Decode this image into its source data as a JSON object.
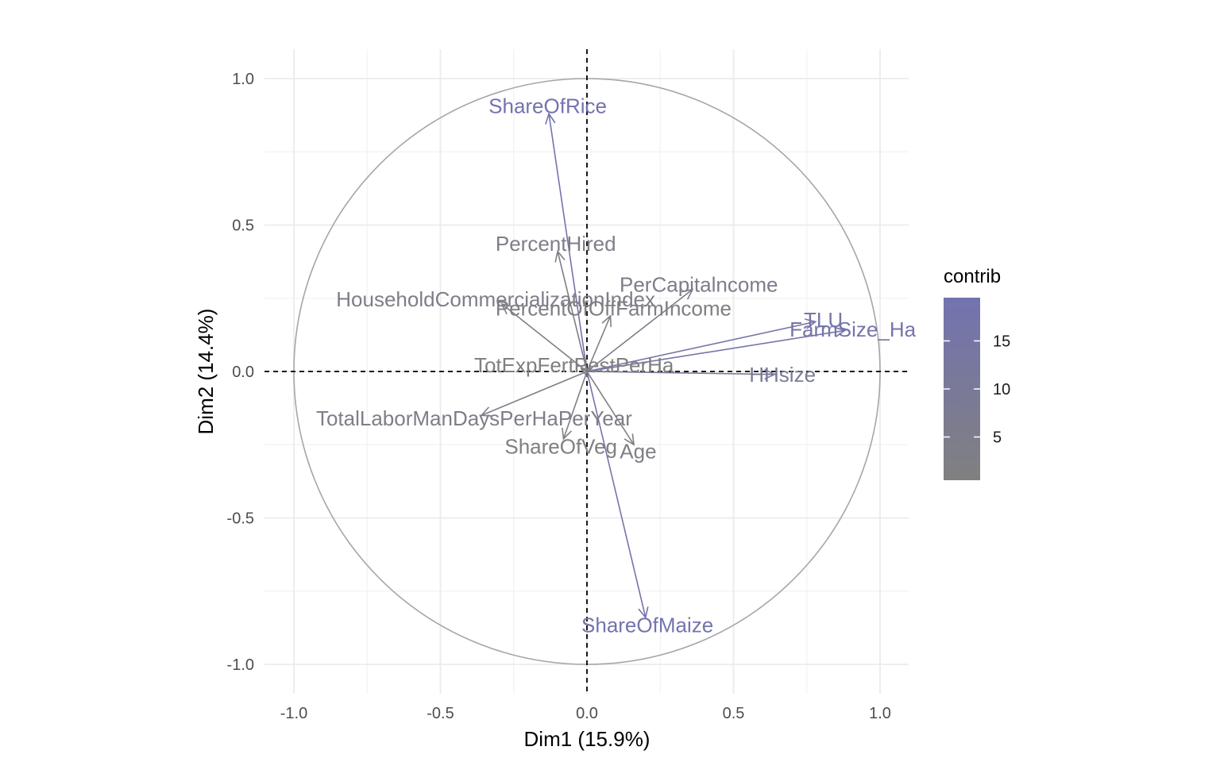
{
  "chart_data": {
    "type": "pca-variables",
    "xlabel": "Dim1 (15.9%)",
    "ylabel": "Dim2 (14.4%)",
    "xlim": [
      -1.0,
      1.0
    ],
    "ylim": [
      -1.0,
      1.0
    ],
    "x_ticks": [
      "-1.0",
      "-0.5",
      "0.0",
      "0.5",
      "1.0"
    ],
    "y_ticks": [
      "1.0",
      "0.5",
      "0.0",
      "-0.5",
      "-1.0"
    ],
    "x_tick_values": [
      -1.0,
      -0.5,
      0.0,
      0.5,
      1.0
    ],
    "y_tick_values": [
      1.0,
      0.5,
      0.0,
      -0.5,
      -1.0
    ],
    "grid": true,
    "unit_circle": true,
    "legend": {
      "title": "contrib",
      "placement": "right",
      "ticks": [
        "15",
        "10",
        "5"
      ],
      "tick_values": [
        15,
        10,
        5
      ],
      "range": [
        0.5,
        19.5
      ],
      "low_color": "#808080",
      "high_color": "#7373b0"
    },
    "variables": [
      {
        "name": "ShareOfRice",
        "x": -0.13,
        "y": 0.88,
        "contrib": 19.0
      },
      {
        "name": "PercentHired",
        "x": -0.1,
        "y": 0.41,
        "contrib": 4.0
      },
      {
        "name": "PerCapitalncome",
        "x": 0.36,
        "y": 0.28,
        "contrib": 5.0
      },
      {
        "name": "HouseholdCommercializationIndex",
        "x": -0.29,
        "y": 0.23,
        "contrib": 4.0
      },
      {
        "name": "PercentOfOffFarmIncome",
        "x": 0.08,
        "y": 0.19,
        "contrib": 2.0
      },
      {
        "name": "TLU",
        "x": 0.78,
        "y": 0.17,
        "contrib": 15.0
      },
      {
        "name": "FarmSize_Ha",
        "x": 0.88,
        "y": 0.14,
        "contrib": 17.0
      },
      {
        "name": "HHsize",
        "x": 0.64,
        "y": -0.01,
        "contrib": 10.0
      },
      {
        "name": "TotExpFertPestPerHa",
        "x": -0.02,
        "y": 0.01,
        "contrib": 0.5
      },
      {
        "name": "TotalLaborManDaysPerHaPerYear",
        "x": -0.36,
        "y": -0.15,
        "contrib": 4.0
      },
      {
        "name": "ShareOfVeg",
        "x": -0.08,
        "y": -0.23,
        "contrib": 2.0
      },
      {
        "name": "Age",
        "x": 0.16,
        "y": -0.25,
        "contrib": 2.0
      },
      {
        "name": "ShareOfMaize",
        "x": 0.2,
        "y": -0.84,
        "contrib": 18.0
      }
    ]
  }
}
